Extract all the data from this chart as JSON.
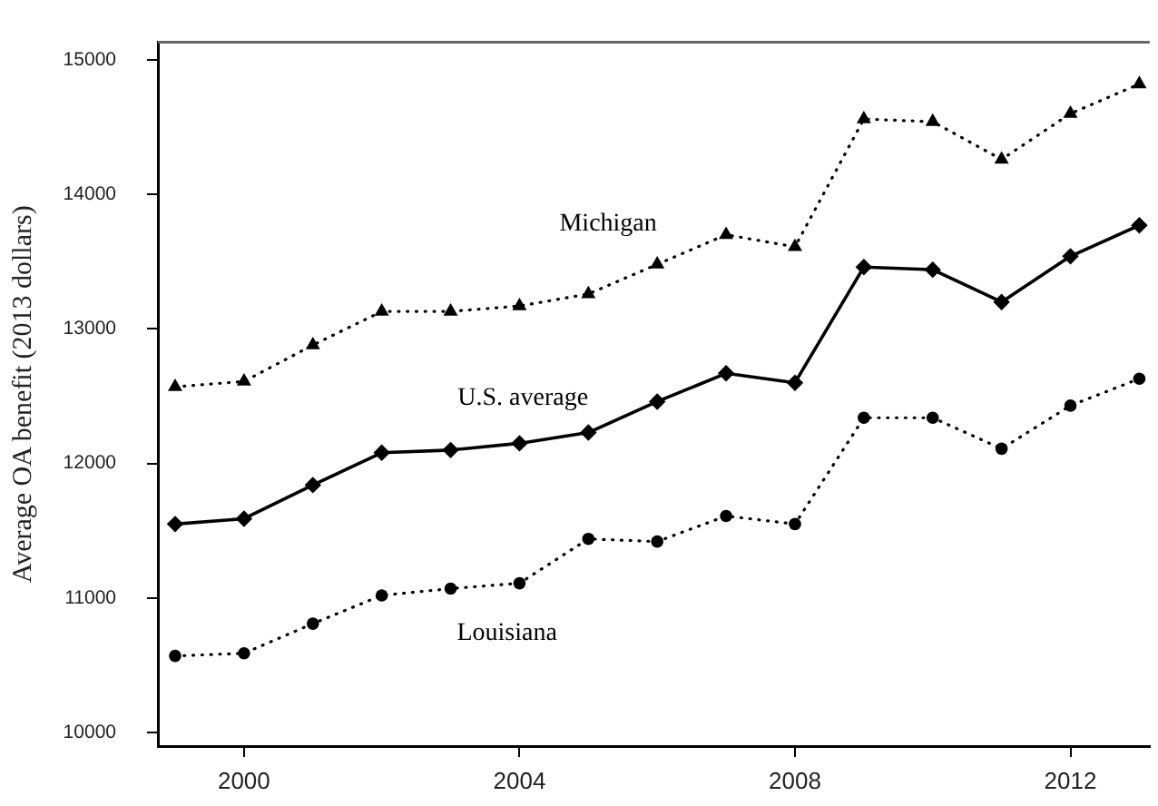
{
  "chart_data": {
    "type": "line",
    "ylabel": "Average OA benefit (2013 dollars)",
    "x": [
      1999,
      2000,
      2001,
      2002,
      2003,
      2004,
      2005,
      2006,
      2007,
      2008,
      2009,
      2010,
      2011,
      2012,
      2013
    ],
    "xlim": [
      1998.75,
      2013.15
    ],
    "xticks": [
      2000,
      2004,
      2008,
      2012
    ],
    "ylim": [
      9900,
      15130
    ],
    "yticks": [
      10000,
      11000,
      12000,
      13000,
      14000,
      15000
    ],
    "grid": false,
    "legend": false,
    "series": [
      {
        "name": "Michigan",
        "color": "#000000",
        "marker": "triangle",
        "line_style": "dotted",
        "values": [
          12570,
          12610,
          12880,
          13130,
          13130,
          13170,
          13260,
          13480,
          13700,
          13610,
          14560,
          14540,
          14260,
          14600,
          14820
        ]
      },
      {
        "name": "U.S. average",
        "color": "#000000",
        "marker": "diamond",
        "line_style": "solid",
        "values": [
          11550,
          11590,
          11840,
          12080,
          12100,
          12150,
          12230,
          12460,
          12670,
          12600,
          13460,
          13440,
          13200,
          13540,
          13770
        ]
      },
      {
        "name": "Louisiana",
        "color": "#000000",
        "marker": "circle",
        "line_style": "dotted",
        "values": [
          10570,
          10590,
          10810,
          11020,
          11070,
          11110,
          11440,
          11420,
          11610,
          11550,
          12340,
          12340,
          12110,
          12430,
          12630
        ]
      }
    ]
  }
}
